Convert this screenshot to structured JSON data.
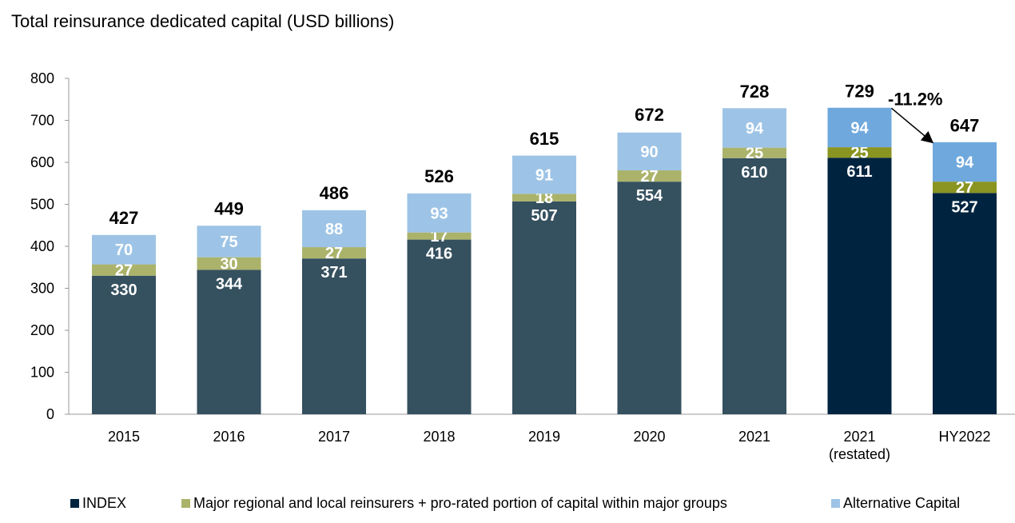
{
  "chart_data": {
    "type": "bar",
    "stacked": true,
    "title": "Total reinsurance dedicated capital (USD billions)",
    "xlabel": "",
    "ylabel": "",
    "ylim": [
      0,
      800
    ],
    "yticks": [
      0,
      100,
      200,
      300,
      400,
      500,
      600,
      700,
      800
    ],
    "grid": false,
    "legend_position": "bottom",
    "categories": [
      "2015",
      "2016",
      "2017",
      "2018",
      "2019",
      "2020",
      "2021",
      "2021\n(restated)",
      "HY2022"
    ],
    "category_labels": [
      [
        "2015"
      ],
      [
        "2016"
      ],
      [
        "2017"
      ],
      [
        "2018"
      ],
      [
        "2019"
      ],
      [
        "2020"
      ],
      [
        "2021"
      ],
      [
        "2021",
        "(restated)"
      ],
      [
        "HY2022"
      ]
    ],
    "highlighted": [
      false,
      false,
      false,
      false,
      false,
      false,
      false,
      true,
      true
    ],
    "series": [
      {
        "name": "INDEX",
        "values": [
          330,
          344,
          371,
          416,
          507,
          554,
          610,
          611,
          527
        ],
        "color": "#002440",
        "faded_color": "#35505f"
      },
      {
        "name": "Major regional and local reinsurers + pro-rated portion of capital within major groups",
        "values": [
          27,
          30,
          27,
          17,
          18,
          27,
          25,
          25,
          27
        ],
        "color": "#8a9420",
        "faded_color": "#abb36b"
      },
      {
        "name": "Alternative Capital",
        "values": [
          70,
          75,
          88,
          93,
          91,
          90,
          94,
          94,
          94
        ],
        "color": "#6fa8dc",
        "faded_color": "#9dc4e6"
      }
    ],
    "totals": [
      427,
      449,
      486,
      526,
      615,
      672,
      728,
      729,
      647
    ],
    "annotation": {
      "text": "-11.2%",
      "from": "2021\n(restated)",
      "to": "HY2022"
    }
  }
}
